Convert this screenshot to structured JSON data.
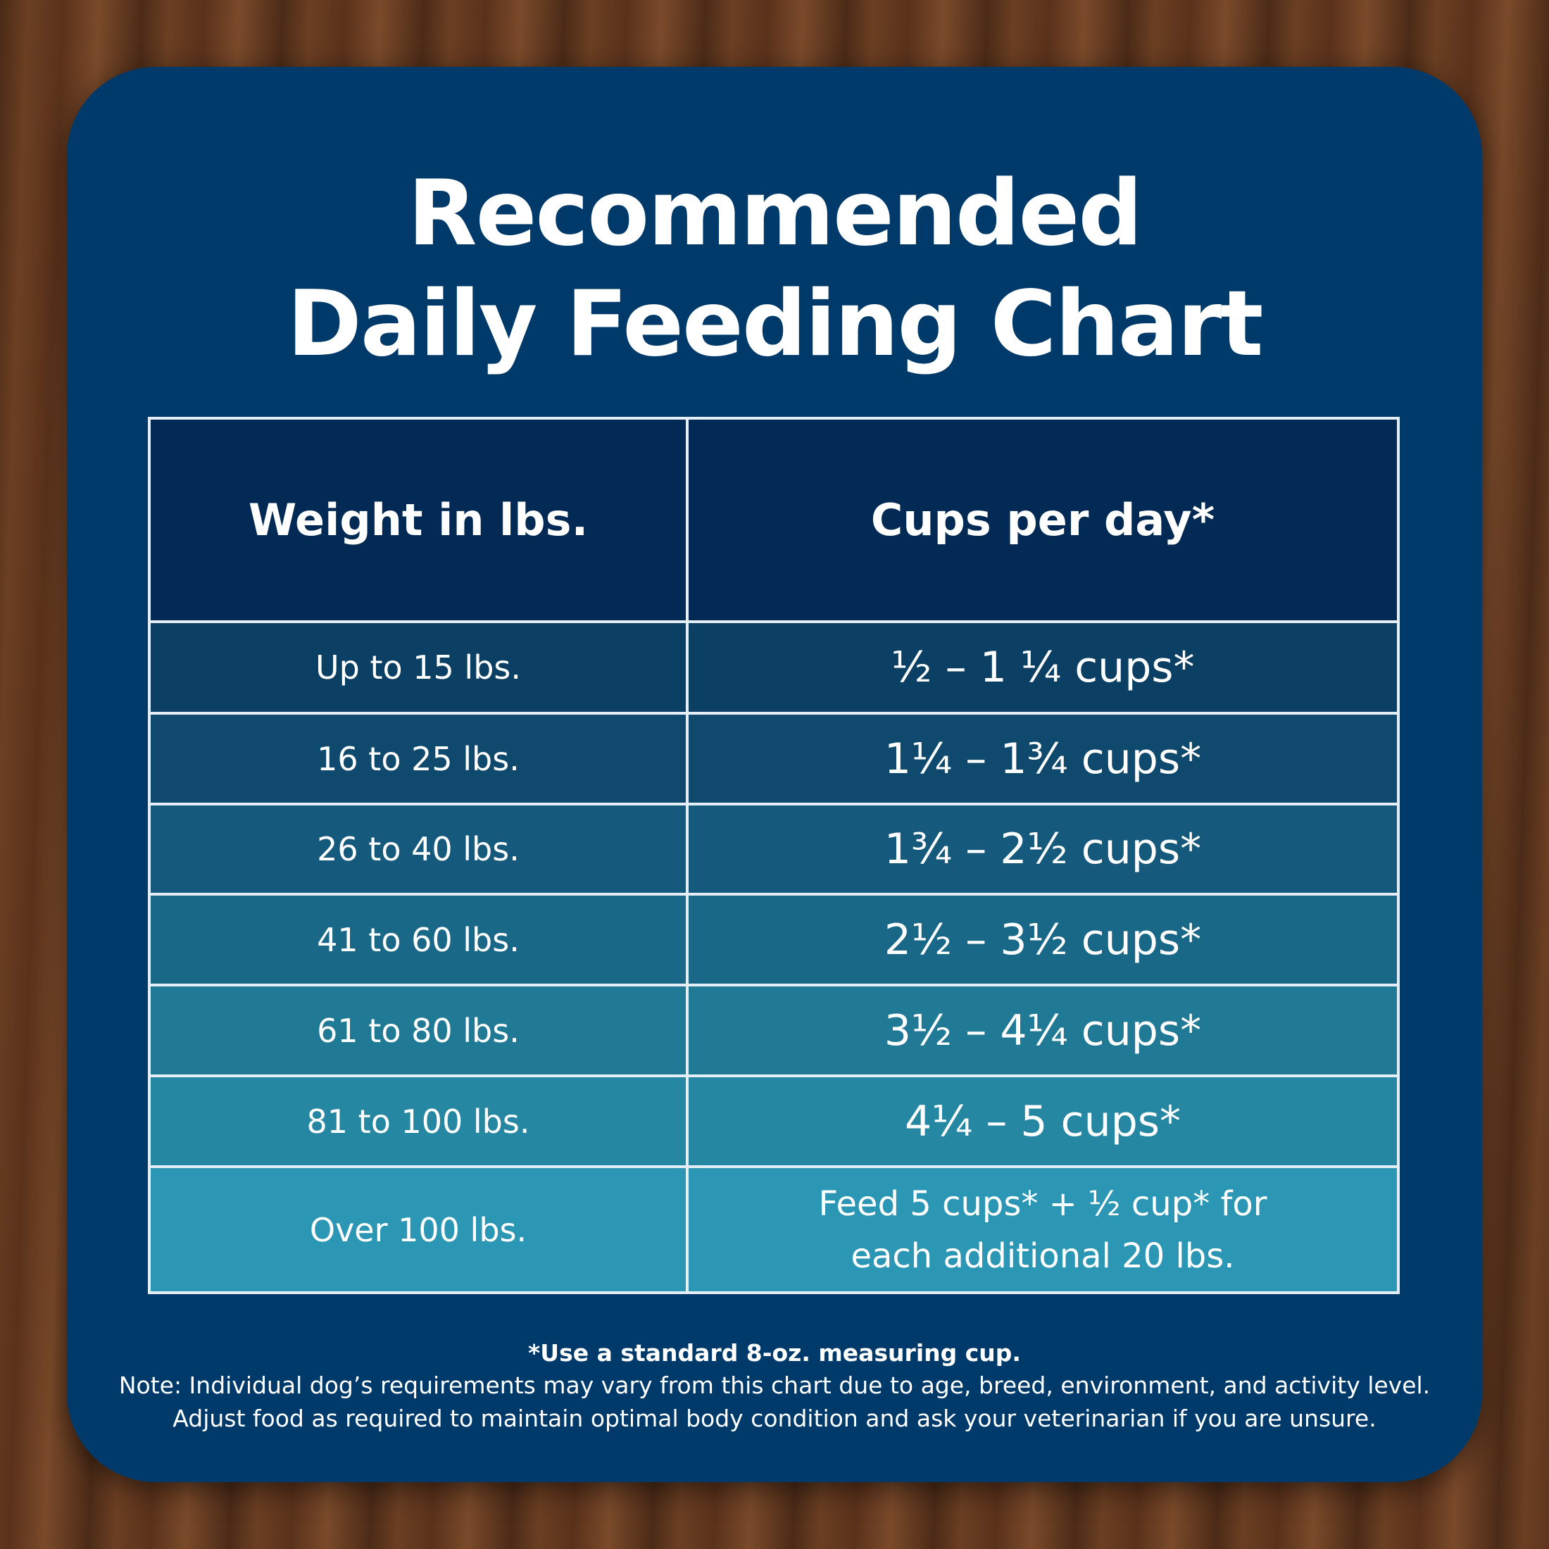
{
  "title_lines": [
    "Recommended",
    "Daily Feeding Chart"
  ],
  "table": {
    "header": [
      "Weight in lbs.",
      "Cups per day*"
    ],
    "rows": [
      [
        "Up to 15 lbs.",
        "½ – 1 ¼ cups*"
      ],
      [
        "16 to 25 lbs.",
        "1¼ – 1¾  cups*"
      ],
      [
        "26 to 40 lbs.",
        "1¾ – 2½ cups*"
      ],
      [
        "41 to 60 lbs.",
        "2½ – 3½ cups*"
      ],
      [
        "61 to 80 lbs.",
        "3½ – 4¼ cups*"
      ],
      [
        "81 to 100 lbs.",
        "4¼ – 5 cups*"
      ],
      [
        "Over 100 lbs.",
        [
          "Feed 5 cups* + ½ cup* for",
          "each additional 20 lbs."
        ]
      ]
    ]
  },
  "footnote": "*Use a standard 8-oz. measuring cup.",
  "note_lines": [
    "Note: Individual dog’s requirements may vary from this chart due to age, breed, environment, and activity level.",
    "Adjust food as required to maintain optimal body condition and ask your veterinarian if you are unsure."
  ]
}
